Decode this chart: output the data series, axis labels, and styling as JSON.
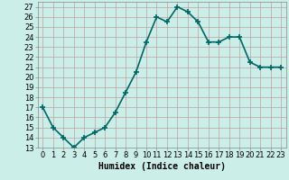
{
  "x": [
    0,
    1,
    2,
    3,
    4,
    5,
    6,
    7,
    8,
    9,
    10,
    11,
    12,
    13,
    14,
    15,
    16,
    17,
    18,
    19,
    20,
    21,
    22,
    23
  ],
  "y": [
    17,
    15,
    14,
    13,
    14,
    14.5,
    15,
    16.5,
    18.5,
    20.5,
    23.5,
    26,
    25.5,
    27,
    26.5,
    25.5,
    23.5,
    23.5,
    24,
    24,
    21.5,
    21,
    21,
    21
  ],
  "line_color": "#006666",
  "marker": "+",
  "marker_size": 4,
  "marker_lw": 1.2,
  "bg_color": "#cceee8",
  "grid_color": "#c0a0a0",
  "xlabel": "Humidex (Indice chaleur)",
  "xlim": [
    -0.5,
    23.5
  ],
  "ylim": [
    13,
    27.5
  ],
  "yticks": [
    13,
    14,
    15,
    16,
    17,
    18,
    19,
    20,
    21,
    22,
    23,
    24,
    25,
    26,
    27
  ],
  "xticks": [
    0,
    1,
    2,
    3,
    4,
    5,
    6,
    7,
    8,
    9,
    10,
    11,
    12,
    13,
    14,
    15,
    16,
    17,
    18,
    19,
    20,
    21,
    22,
    23
  ],
  "xlabel_fontsize": 7,
  "tick_fontsize": 6,
  "linewidth": 1.2
}
